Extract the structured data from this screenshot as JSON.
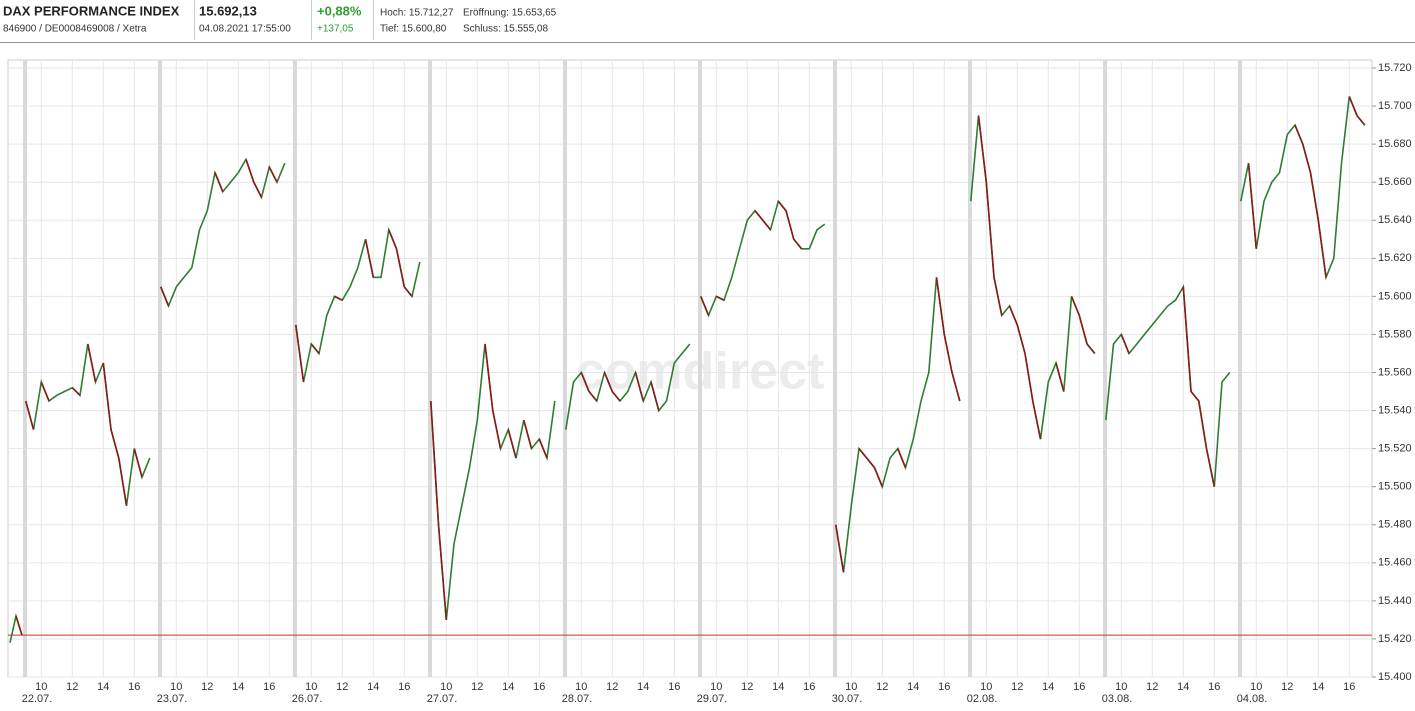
{
  "header": {
    "title": "DAX PERFORMANCE INDEX",
    "price": "15.692,13",
    "change_pct": "+0,88%",
    "high": "Hoch: 15.712,27",
    "open": "Eröffnung: 15.653,65",
    "identifier": "846900 / DE0008469008 / Xetra",
    "timestamp": "04.08.2021 17:55:00",
    "change_abs": "+137,05",
    "low": "Tief: 15.600,80",
    "close": "Schluss: 15.555,08"
  },
  "chart_data": {
    "type": "line",
    "watermark": "comdirect",
    "color": "#2e7d32",
    "grid": true,
    "ylim": [
      15400,
      15720
    ],
    "yticks": [
      {
        "value": 15400,
        "label": "15.400"
      },
      {
        "value": 15420,
        "label": "15.420"
      },
      {
        "value": 15440,
        "label": "15.440"
      },
      {
        "value": 15460,
        "label": "15.460"
      },
      {
        "value": 15480,
        "label": "15.480"
      },
      {
        "value": 15500,
        "label": "15.500"
      },
      {
        "value": 15520,
        "label": "15.520"
      },
      {
        "value": 15540,
        "label": "15.540"
      },
      {
        "value": 15560,
        "label": "15.560"
      },
      {
        "value": 15580,
        "label": "15.580"
      },
      {
        "value": 15600,
        "label": "15.600"
      },
      {
        "value": 15620,
        "label": "15.620"
      },
      {
        "value": 15640,
        "label": "15.640"
      },
      {
        "value": 15660,
        "label": "15.660"
      },
      {
        "value": 15680,
        "label": "15.680"
      },
      {
        "value": 15700,
        "label": "15.700"
      },
      {
        "value": 15720,
        "label": "15.720"
      }
    ],
    "hour_ticks": [
      10,
      12,
      14,
      16
    ],
    "reference_line": {
      "value": 15422,
      "color": "#d32f2f"
    },
    "sessions": [
      {
        "date": null,
        "values": [
          15418,
          15432,
          15422
        ]
      },
      {
        "date": "22.07.",
        "values": [
          15545,
          15530,
          15555,
          15545,
          15548,
          15550,
          15552,
          15548,
          15575,
          15555,
          15565,
          15530,
          15515,
          15490,
          15520,
          15505,
          15515
        ]
      },
      {
        "date": "23.07.",
        "values": [
          15605,
          15595,
          15605,
          15610,
          15615,
          15635,
          15645,
          15665,
          15655,
          15660,
          15665,
          15672,
          15660,
          15652,
          15668,
          15660,
          15670
        ]
      },
      {
        "date": "26.07.",
        "values": [
          15585,
          15555,
          15575,
          15570,
          15590,
          15600,
          15598,
          15605,
          15615,
          15630,
          15610,
          15610,
          15635,
          15625,
          15605,
          15600,
          15618
        ]
      },
      {
        "date": "27.07.",
        "values": [
          15545,
          15480,
          15430,
          15470,
          15490,
          15510,
          15535,
          15575,
          15540,
          15520,
          15530,
          15515,
          15535,
          15520,
          15525,
          15515,
          15545
        ]
      },
      {
        "date": "28.07.",
        "values": [
          15530,
          15555,
          15560,
          15550,
          15545,
          15560,
          15550,
          15545,
          15550,
          15560,
          15545,
          15555,
          15540,
          15545,
          15565,
          15570,
          15575
        ]
      },
      {
        "date": "29.07.",
        "values": [
          15600,
          15590,
          15600,
          15598,
          15610,
          15625,
          15640,
          15645,
          15640,
          15635,
          15650,
          15645,
          15630,
          15625,
          15625,
          15635,
          15638
        ]
      },
      {
        "date": "30.07.",
        "values": [
          15480,
          15455,
          15490,
          15520,
          15515,
          15510,
          15500,
          15515,
          15520,
          15510,
          15525,
          15545,
          15560,
          15610,
          15580,
          15560,
          15545
        ]
      },
      {
        "date": "02.08.",
        "values": [
          15650,
          15695,
          15660,
          15610,
          15590,
          15595,
          15585,
          15570,
          15545,
          15525,
          15555,
          15565,
          15550,
          15600,
          15590,
          15575,
          15570
        ]
      },
      {
        "date": "03.08.",
        "values": [
          15535,
          15575,
          15580,
          15570,
          15575,
          15580,
          15585,
          15590,
          15595,
          15598,
          15605,
          15550,
          15545,
          15520,
          15500,
          15555,
          15560
        ]
      },
      {
        "date": "04.08.",
        "values": [
          15650,
          15670,
          15625,
          15650,
          15660,
          15665,
          15685,
          15690,
          15680,
          15665,
          15640,
          15610,
          15620,
          15670,
          15705,
          15695,
          15690
        ]
      }
    ]
  }
}
